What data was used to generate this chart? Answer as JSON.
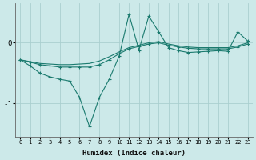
{
  "xlabel": "Humidex (Indice chaleur)",
  "x_ticks": [
    0,
    1,
    2,
    3,
    4,
    5,
    6,
    7,
    8,
    9,
    10,
    11,
    12,
    13,
    14,
    15,
    16,
    17,
    18,
    19,
    20,
    21,
    22,
    23
  ],
  "y_ticks": [
    -1,
    0
  ],
  "xlim": [
    -0.5,
    23.5
  ],
  "ylim": [
    -1.55,
    0.65
  ],
  "bg_color": "#cce9e9",
  "line_color": "#1a7a6e",
  "grid_color": "#aacfcf",
  "series1_x": [
    0,
    1,
    2,
    3,
    4,
    5,
    6,
    7,
    8,
    9,
    10,
    11,
    12,
    13,
    14,
    15,
    16,
    17,
    18,
    19,
    20,
    21,
    22,
    23
  ],
  "series1_y": [
    -0.28,
    -0.38,
    -0.5,
    -0.56,
    -0.6,
    -0.63,
    -0.9,
    -1.38,
    -0.9,
    -0.6,
    -0.22,
    0.47,
    -0.12,
    0.44,
    0.18,
    -0.08,
    -0.13,
    -0.16,
    -0.15,
    -0.14,
    -0.13,
    -0.14,
    0.18,
    0.03
  ],
  "series2_x": [
    0,
    1,
    2,
    3,
    4,
    5,
    6,
    7,
    8,
    9,
    10,
    11,
    12,
    13,
    14,
    15,
    16,
    17,
    18,
    19,
    20,
    21,
    22,
    23
  ],
  "series2_y": [
    -0.28,
    -0.32,
    -0.36,
    -0.38,
    -0.4,
    -0.4,
    -0.4,
    -0.4,
    -0.36,
    -0.28,
    -0.18,
    -0.1,
    -0.06,
    -0.02,
    0.0,
    -0.04,
    -0.07,
    -0.09,
    -0.1,
    -0.1,
    -0.1,
    -0.1,
    -0.07,
    -0.02
  ],
  "series3_x": [
    0,
    1,
    2,
    3,
    4,
    5,
    6,
    7,
    8,
    9,
    10,
    11,
    12,
    13,
    14,
    15,
    16,
    17,
    18,
    19,
    20,
    21,
    22,
    23
  ],
  "series3_y": [
    -0.28,
    -0.31,
    -0.34,
    -0.35,
    -0.36,
    -0.36,
    -0.35,
    -0.34,
    -0.3,
    -0.23,
    -0.15,
    -0.08,
    -0.04,
    0.0,
    0.02,
    -0.02,
    -0.05,
    -0.07,
    -0.08,
    -0.08,
    -0.08,
    -0.08,
    -0.05,
    0.0
  ]
}
